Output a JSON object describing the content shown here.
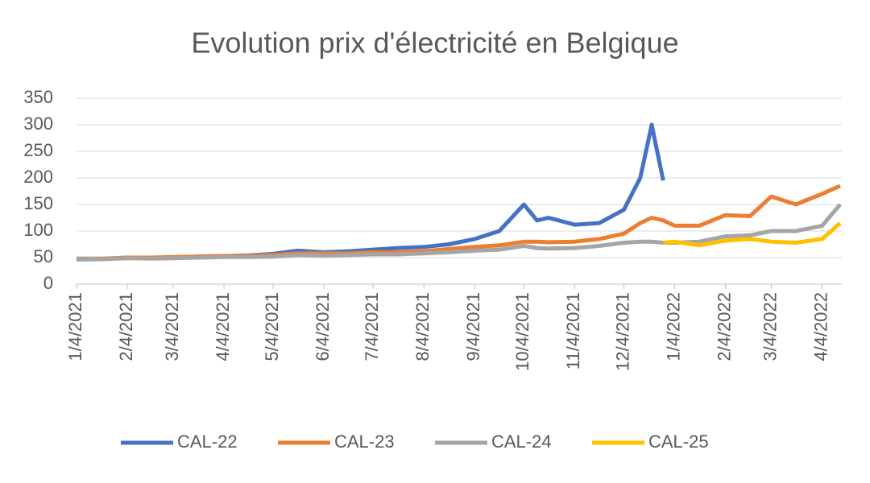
{
  "chart_data": {
    "type": "line",
    "title": "Evolution prix d'électricité en Belgique",
    "x": [
      "1/4/2021",
      "1/19/2021",
      "2/4/2021",
      "2/19/2021",
      "3/4/2021",
      "3/19/2021",
      "4/4/2021",
      "4/19/2021",
      "5/4/2021",
      "5/19/2021",
      "6/4/2021",
      "6/19/2021",
      "7/4/2021",
      "7/19/2021",
      "8/4/2021",
      "8/19/2021",
      "9/4/2021",
      "9/19/2021",
      "10/4/2021",
      "10/12/2021",
      "10/19/2021",
      "11/4/2021",
      "11/19/2021",
      "12/4/2021",
      "12/14/2021",
      "12/21/2021",
      "12/28/2021",
      "1/4/2022",
      "1/19/2022",
      "2/4/2022",
      "2/19/2022",
      "3/4/2022",
      "3/19/2022",
      "4/4/2022",
      "4/15/2022"
    ],
    "series": [
      {
        "name": "CAL-22",
        "color": "#4472c4",
        "values": [
          47,
          47,
          50,
          50,
          50,
          52,
          53,
          54,
          57,
          63,
          60,
          62,
          65,
          68,
          70,
          75,
          85,
          100,
          150,
          120,
          125,
          112,
          115,
          140,
          200,
          300,
          195,
          null,
          null,
          null,
          null,
          null,
          null,
          null,
          null
        ]
      },
      {
        "name": "CAL-23",
        "color": "#ed7d31",
        "values": [
          48,
          48,
          50,
          50,
          51,
          52,
          53,
          53,
          55,
          58,
          58,
          58,
          60,
          60,
          62,
          66,
          70,
          73,
          80,
          80,
          79,
          80,
          85,
          95,
          115,
          125,
          120,
          110,
          110,
          130,
          128,
          165,
          150,
          170,
          185
        ]
      },
      {
        "name": "CAL-24",
        "color": "#a5a5a5",
        "values": [
          48,
          47,
          49,
          48,
          49,
          50,
          51,
          51,
          52,
          55,
          54,
          55,
          56,
          56,
          58,
          60,
          63,
          65,
          72,
          68,
          67,
          68,
          72,
          78,
          80,
          80,
          78,
          78,
          80,
          90,
          92,
          100,
          100,
          110,
          150
        ]
      },
      {
        "name": "CAL-25",
        "color": "#ffc000",
        "values": [
          null,
          null,
          null,
          null,
          null,
          null,
          null,
          null,
          null,
          null,
          null,
          null,
          null,
          null,
          null,
          null,
          null,
          null,
          null,
          null,
          null,
          null,
          null,
          null,
          null,
          null,
          78,
          80,
          73,
          82,
          85,
          80,
          78,
          85,
          115
        ]
      }
    ],
    "xlim": [
      "1/4/2021",
      "4/16/2022"
    ],
    "xticks": [
      "1/4/2021",
      "2/4/2021",
      "3/4/2021",
      "4/4/2021",
      "5/4/2021",
      "6/4/2021",
      "7/4/2021",
      "8/4/2021",
      "9/4/2021",
      "10/4/2021",
      "11/4/2021",
      "12/4/2021",
      "1/4/2022",
      "2/4/2022",
      "3/4/2022",
      "4/4/2022"
    ],
    "ylim": [
      0,
      350
    ],
    "yticks": [
      0,
      50,
      100,
      150,
      200,
      250,
      300,
      350
    ],
    "grid": true,
    "legend": "bottom"
  }
}
